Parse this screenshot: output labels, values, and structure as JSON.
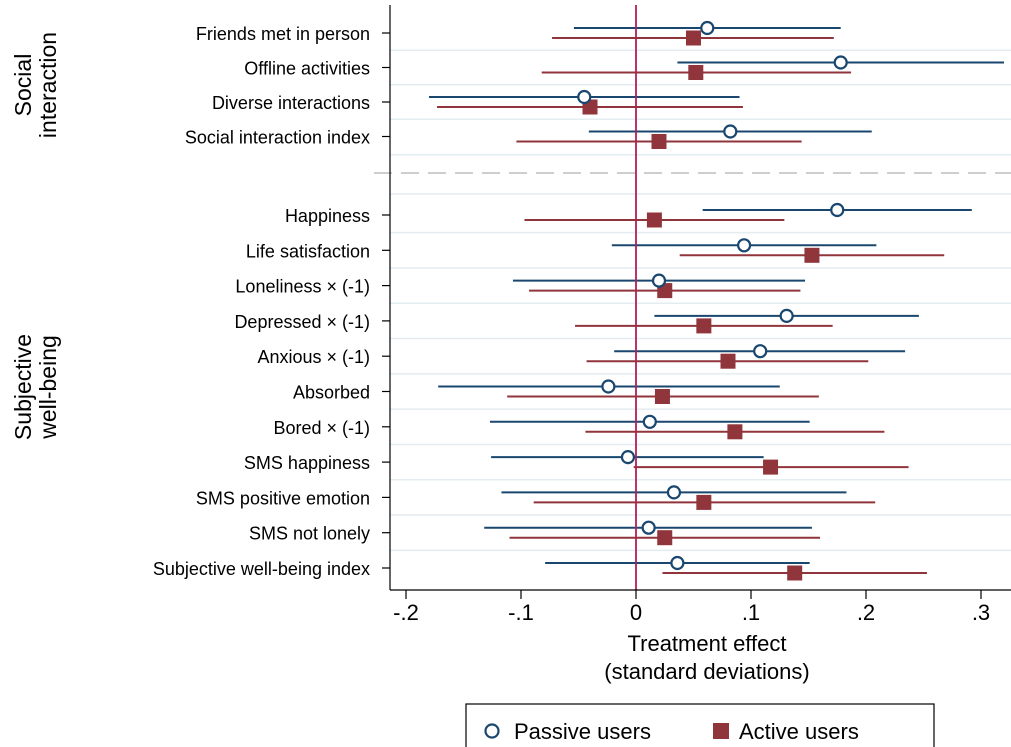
{
  "chart_data": {
    "type": "scatter",
    "xlabel_line1": "Treatment effect",
    "xlabel_line2": "(standard deviations)",
    "xlim": [
      -0.21,
      0.33
    ],
    "xticks": [
      {
        "v": -0.2,
        "label": "-.2"
      },
      {
        "v": -0.1,
        "label": "-.1"
      },
      {
        "v": 0,
        "label": "0"
      },
      {
        "v": 0.1,
        "label": ".1"
      },
      {
        "v": 0.2,
        "label": ".2"
      },
      {
        "v": 0.3,
        "label": ".3"
      }
    ],
    "groups": [
      {
        "line1": "Social",
        "line2": "interaction"
      },
      {
        "line1": "Subjective",
        "line2": "well-being"
      }
    ],
    "legend_position": "bottom",
    "colors": {
      "passive": "#1a476f",
      "active": "#90353b",
      "zero_line": "#b0205a"
    },
    "series": [
      {
        "name": "Passive users",
        "marker": "hollow-circle",
        "color": "#1a476f"
      },
      {
        "name": "Active users",
        "marker": "filled-square",
        "color": "#90353b"
      }
    ],
    "rows": [
      {
        "label": "Friends met in person",
        "group": 0,
        "passive": {
          "est": 0.062,
          "lo": -0.054,
          "hi": 0.178
        },
        "active": {
          "est": 0.05,
          "lo": -0.073,
          "hi": 0.172
        }
      },
      {
        "label": "Offline activities",
        "group": 0,
        "passive": {
          "est": 0.178,
          "lo": 0.036,
          "hi": 0.32
        },
        "active": {
          "est": 0.052,
          "lo": -0.082,
          "hi": 0.187
        }
      },
      {
        "label": "Diverse interactions",
        "group": 0,
        "passive": {
          "est": -0.045,
          "lo": -0.18,
          "hi": 0.09
        },
        "active": {
          "est": -0.04,
          "lo": -0.173,
          "hi": 0.093
        }
      },
      {
        "label": "Social interaction index",
        "group": 0,
        "passive": {
          "est": 0.082,
          "lo": -0.041,
          "hi": 0.205
        },
        "active": {
          "est": 0.02,
          "lo": -0.104,
          "hi": 0.144
        }
      },
      {
        "label": "Happiness",
        "group": 1,
        "passive": {
          "est": 0.175,
          "lo": 0.058,
          "hi": 0.292
        },
        "active": {
          "est": 0.016,
          "lo": -0.097,
          "hi": 0.129
        }
      },
      {
        "label": "Life satisfaction",
        "group": 1,
        "passive": {
          "est": 0.094,
          "lo": -0.021,
          "hi": 0.209
        },
        "active": {
          "est": 0.153,
          "lo": 0.038,
          "hi": 0.268
        }
      },
      {
        "label": "Loneliness × (-1)",
        "group": 1,
        "passive": {
          "est": 0.02,
          "lo": -0.107,
          "hi": 0.147
        },
        "active": {
          "est": 0.025,
          "lo": -0.093,
          "hi": 0.143
        }
      },
      {
        "label": "Depressed × (-1)",
        "group": 1,
        "passive": {
          "est": 0.131,
          "lo": 0.016,
          "hi": 0.246
        },
        "active": {
          "est": 0.059,
          "lo": -0.053,
          "hi": 0.171
        }
      },
      {
        "label": "Anxious × (-1)",
        "group": 1,
        "passive": {
          "est": 0.108,
          "lo": -0.019,
          "hi": 0.234
        },
        "active": {
          "est": 0.08,
          "lo": -0.043,
          "hi": 0.202
        }
      },
      {
        "label": "Absorbed",
        "group": 1,
        "passive": {
          "est": -0.024,
          "lo": -0.172,
          "hi": 0.125
        },
        "active": {
          "est": 0.023,
          "lo": -0.112,
          "hi": 0.159
        }
      },
      {
        "label": "Bored × (-1)",
        "group": 1,
        "passive": {
          "est": 0.012,
          "lo": -0.127,
          "hi": 0.151
        },
        "active": {
          "est": 0.086,
          "lo": -0.044,
          "hi": 0.216
        }
      },
      {
        "label": "SMS happiness",
        "group": 1,
        "passive": {
          "est": -0.007,
          "lo": -0.126,
          "hi": 0.111
        },
        "active": {
          "est": 0.117,
          "lo": -0.002,
          "hi": 0.237
        }
      },
      {
        "label": "SMS positive emotion",
        "group": 1,
        "passive": {
          "est": 0.033,
          "lo": -0.117,
          "hi": 0.183
        },
        "active": {
          "est": 0.059,
          "lo": -0.089,
          "hi": 0.208
        }
      },
      {
        "label": "SMS not lonely",
        "group": 1,
        "passive": {
          "est": 0.011,
          "lo": -0.132,
          "hi": 0.153
        },
        "active": {
          "est": 0.025,
          "lo": -0.11,
          "hi": 0.16
        }
      },
      {
        "label": "Subjective well-being index",
        "group": 1,
        "passive": {
          "est": 0.036,
          "lo": -0.079,
          "hi": 0.151
        },
        "active": {
          "est": 0.138,
          "lo": 0.023,
          "hi": 0.253
        }
      }
    ]
  }
}
